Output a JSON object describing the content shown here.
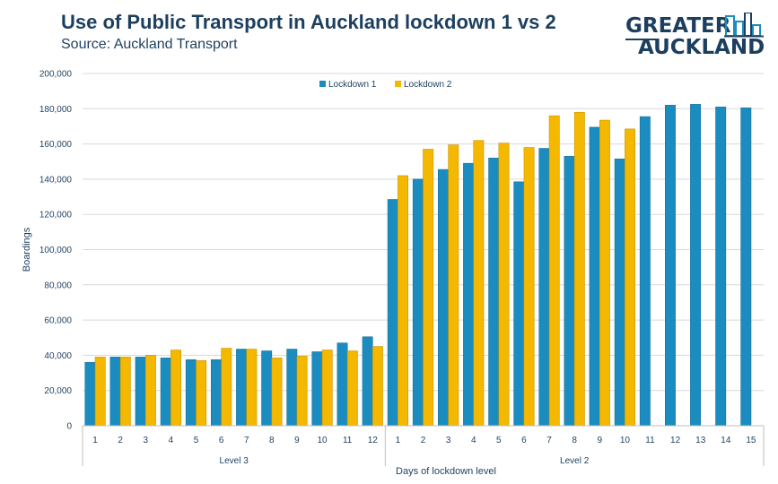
{
  "header": {
    "title": "Use of Public Transport in Auckland lockdown 1 vs 2",
    "subtitle": "Source: Auckland Transport"
  },
  "logo": {
    "line1": "GREATER",
    "line2": "AUCKLAND",
    "icon": "building-skyline-icon"
  },
  "colors": {
    "lockdown1": "#1b8cc0",
    "lockdown2": "#f5b800",
    "text": "#1d3f5f",
    "grid": "#d9d9d9"
  },
  "chart_data": {
    "type": "bar",
    "ylabel": "Boardings",
    "xlabel": "Days of lockdown level",
    "ylim": [
      0,
      200000
    ],
    "yticks": [
      0,
      20000,
      40000,
      60000,
      80000,
      100000,
      120000,
      140000,
      160000,
      180000,
      200000
    ],
    "ytick_labels": [
      "0",
      "20,000",
      "40,000",
      "60,000",
      "80,000",
      "100,000",
      "120,000",
      "140,000",
      "160,000",
      "180,000",
      "200,000"
    ],
    "grid": true,
    "legend_position": "top-center",
    "groups": [
      {
        "name": "Level 3",
        "categories": [
          "1",
          "2",
          "3",
          "4",
          "5",
          "6",
          "7",
          "8",
          "9",
          "10",
          "11",
          "12"
        ]
      },
      {
        "name": "Level 2",
        "categories": [
          "1",
          "2",
          "3",
          "4",
          "5",
          "6",
          "7",
          "8",
          "9",
          "10",
          "11",
          "12",
          "13",
          "14",
          "15"
        ]
      }
    ],
    "series": [
      {
        "name": "Lockdown 1",
        "values": [
          36000,
          39000,
          39000,
          38500,
          37500,
          37500,
          43500,
          42500,
          43500,
          42000,
          47000,
          50500,
          128500,
          140000,
          145500,
          149000,
          152000,
          138500,
          157500,
          153000,
          169500,
          151500,
          175500,
          182000,
          182500,
          181000,
          180500
        ]
      },
      {
        "name": "Lockdown 2",
        "values": [
          39000,
          39000,
          40000,
          43000,
          37000,
          44000,
          43500,
          38500,
          39500,
          43000,
          42500,
          45000,
          142000,
          157000,
          159500,
          162000,
          160500,
          158000,
          176000,
          178000,
          173500,
          168500,
          null,
          null,
          null,
          null,
          null
        ]
      }
    ]
  }
}
